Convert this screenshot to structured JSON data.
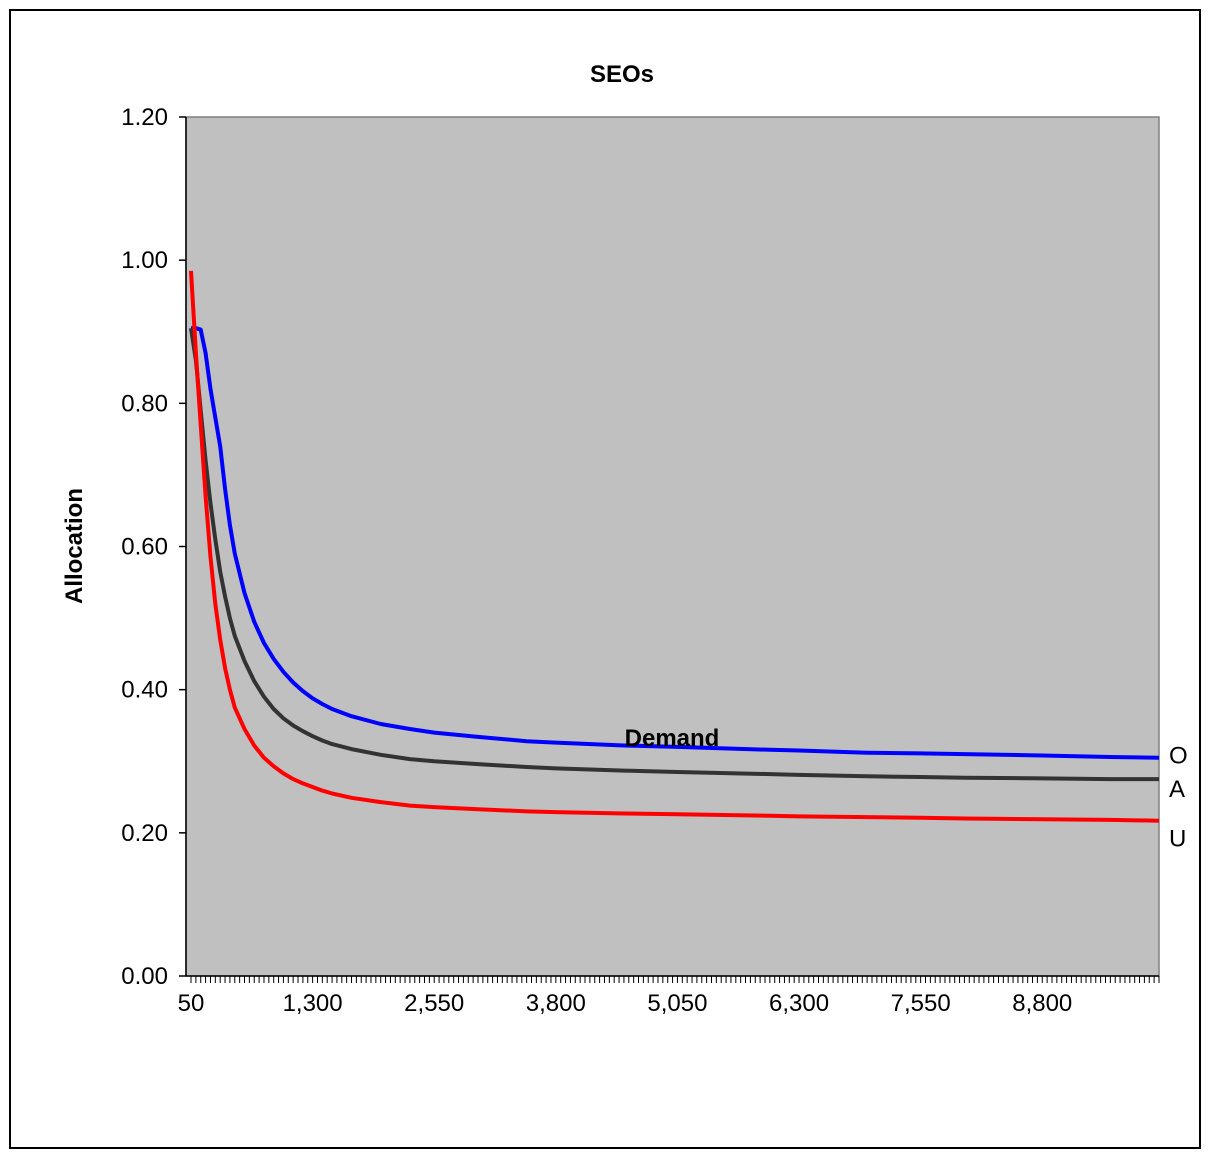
{
  "chart_data": {
    "type": "line",
    "title": "SEOs",
    "xlabel": "Demand",
    "ylabel": "Allocation",
    "xlim": [
      50,
      10000
    ],
    "ylim": [
      0,
      1.2
    ],
    "y_ticks": [
      "0.00",
      "0.20",
      "0.40",
      "0.60",
      "0.80",
      "1.00",
      "1.20"
    ],
    "y_tick_values": [
      0,
      0.2,
      0.4,
      0.6,
      0.8,
      1.0,
      1.2
    ],
    "x_ticks": [
      "50",
      "1,300",
      "2,550",
      "3,800",
      "5,050",
      "6,300",
      "7,550",
      "8,800"
    ],
    "x_tick_values": [
      50,
      1300,
      2550,
      3800,
      5050,
      6300,
      7550,
      8800
    ],
    "plot_background": "#c0c0c0",
    "series": [
      {
        "name": "O",
        "color": "#0000ff",
        "x": [
          50,
          100,
          150,
          200,
          250,
          300,
          350,
          400,
          450,
          500,
          600,
          700,
          800,
          900,
          1000,
          1100,
          1200,
          1300,
          1400,
          1500,
          1700,
          2000,
          2300,
          2550,
          3000,
          3500,
          3800,
          4500,
          5050,
          6000,
          6300,
          7000,
          7550,
          8000,
          8800,
          9500,
          10000
        ],
        "y": [
          0.905,
          0.905,
          0.903,
          0.87,
          0.82,
          0.78,
          0.74,
          0.68,
          0.63,
          0.59,
          0.535,
          0.495,
          0.465,
          0.443,
          0.425,
          0.41,
          0.398,
          0.388,
          0.38,
          0.373,
          0.363,
          0.352,
          0.345,
          0.34,
          0.334,
          0.328,
          0.326,
          0.322,
          0.32,
          0.316,
          0.315,
          0.312,
          0.311,
          0.31,
          0.308,
          0.306,
          0.305
        ]
      },
      {
        "name": "A",
        "color": "#333333",
        "x": [
          50,
          100,
          150,
          200,
          250,
          300,
          350,
          400,
          450,
          500,
          600,
          700,
          800,
          900,
          1000,
          1100,
          1200,
          1300,
          1400,
          1500,
          1700,
          2000,
          2300,
          2550,
          3000,
          3500,
          3800,
          4500,
          5050,
          6000,
          6300,
          7000,
          7550,
          8000,
          8800,
          9500,
          10000
        ],
        "y": [
          0.905,
          0.86,
          0.79,
          0.72,
          0.66,
          0.61,
          0.565,
          0.53,
          0.5,
          0.475,
          0.44,
          0.412,
          0.39,
          0.373,
          0.36,
          0.35,
          0.342,
          0.335,
          0.329,
          0.324,
          0.317,
          0.309,
          0.303,
          0.3,
          0.296,
          0.292,
          0.29,
          0.287,
          0.285,
          0.282,
          0.281,
          0.279,
          0.278,
          0.277,
          0.276,
          0.275,
          0.275
        ]
      },
      {
        "name": "U",
        "color": "#ff0000",
        "x": [
          50,
          100,
          150,
          200,
          250,
          300,
          350,
          400,
          450,
          500,
          600,
          700,
          800,
          900,
          1000,
          1100,
          1200,
          1300,
          1400,
          1500,
          1700,
          2000,
          2300,
          2550,
          3000,
          3500,
          3800,
          4500,
          5050,
          6000,
          6300,
          7000,
          7550,
          8000,
          8800,
          9500,
          10000
        ],
        "y": [
          0.985,
          0.87,
          0.77,
          0.67,
          0.585,
          0.52,
          0.47,
          0.43,
          0.4,
          0.375,
          0.345,
          0.322,
          0.305,
          0.293,
          0.283,
          0.275,
          0.269,
          0.264,
          0.259,
          0.255,
          0.249,
          0.243,
          0.238,
          0.236,
          0.233,
          0.23,
          0.229,
          0.227,
          0.226,
          0.224,
          0.223,
          0.222,
          0.221,
          0.22,
          0.219,
          0.218,
          0.217
        ]
      }
    ]
  }
}
